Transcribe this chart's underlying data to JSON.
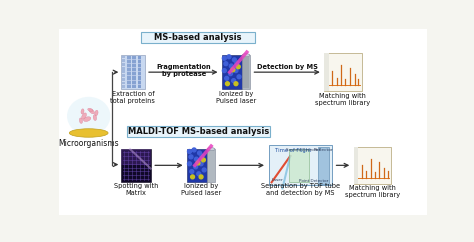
{
  "figsize": [
    4.74,
    2.42
  ],
  "dpi": 100,
  "bg_color": "#f5f5f0",
  "title_ms": "MS-based analysis",
  "title_maldi": "MALDI-TOF MS-based analysis",
  "row1_labels": [
    "Extraction of\ntotal proteins",
    "Fragmentation\nby protease",
    "Ionized by\nPulsed laser",
    "Detection by MS",
    "Matching with\nspectrum library"
  ],
  "row2_labels": [
    "Spotting with\nMatrix",
    "Ionized by\nPulsed laser",
    "Separation by TOF tube\nand detection by MS",
    "Matching with\nspectrum library"
  ],
  "micro_label": "Microorganisms",
  "label_fontsize": 4.8,
  "title_fontsize": 6.0,
  "arrow_lw": 0.9
}
